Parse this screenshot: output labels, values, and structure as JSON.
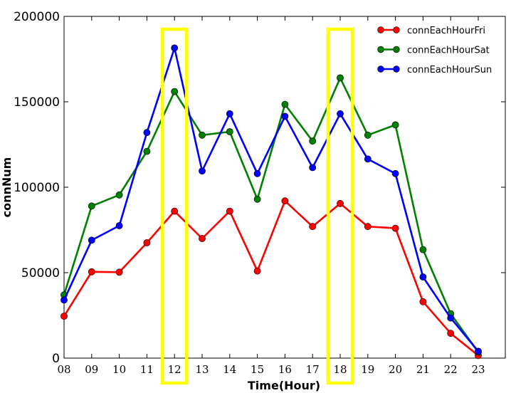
{
  "chart_data": {
    "type": "line",
    "xlabel": "Time(Hour)",
    "ylabel": "connNum",
    "x": [
      "08",
      "09",
      "10",
      "11",
      "12",
      "13",
      "14",
      "15",
      "16",
      "17",
      "18",
      "19",
      "20",
      "21",
      "22",
      "23"
    ],
    "ylim": [
      0,
      200000
    ],
    "yticks": [
      0,
      50000,
      100000,
      150000,
      200000
    ],
    "ytick_labels": [
      "0",
      "50000",
      "100000",
      "150000",
      "200000"
    ],
    "legend_position": "top-right",
    "grid": false,
    "series": [
      {
        "name": "connEachHourFri",
        "color": "#ff0000",
        "values": [
          24500,
          50500,
          50300,
          67500,
          86000,
          70000,
          86000,
          51000,
          92000,
          77000,
          90500,
          77000,
          76000,
          33000,
          14500,
          1500
        ]
      },
      {
        "name": "connEachHourSat",
        "color": "#008000",
        "values": [
          37000,
          89000,
          95500,
          121000,
          156000,
          130500,
          132500,
          93000,
          148500,
          127000,
          164000,
          130500,
          136500,
          63500,
          26000,
          3500
        ]
      },
      {
        "name": "connEachHourSun",
        "color": "#0000ff",
        "values": [
          34000,
          69000,
          77500,
          132000,
          181500,
          109500,
          143000,
          108000,
          141500,
          111500,
          143000,
          116500,
          108000,
          47500,
          23500,
          4000
        ]
      }
    ],
    "highlights": [
      {
        "category": "12",
        "color": "#ffff00"
      },
      {
        "category": "18",
        "color": "#ffff00"
      }
    ]
  }
}
